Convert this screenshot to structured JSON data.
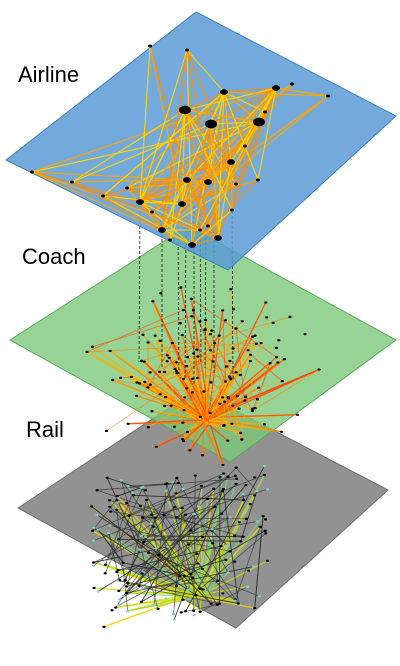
{
  "diagram": {
    "layers": [
      {
        "id": "airline",
        "label": "Airline",
        "plane_color": "#5b9bd5",
        "edge_colors": [
          "#ffd400",
          "#ffa500",
          "#ff8c00"
        ]
      },
      {
        "id": "coach",
        "label": "Coach",
        "plane_color": "#7cc87a",
        "edge_colors": [
          "#ff4500",
          "#ff7f00",
          "#ffb000"
        ]
      },
      {
        "id": "rail",
        "label": "Rail",
        "plane_color": "#8c8c8c",
        "edge_colors": [
          "#ffd400",
          "#c8e000",
          "#7fd37f"
        ]
      }
    ],
    "interlayer_edge_color": "#000000",
    "node_color": "#000000"
  }
}
